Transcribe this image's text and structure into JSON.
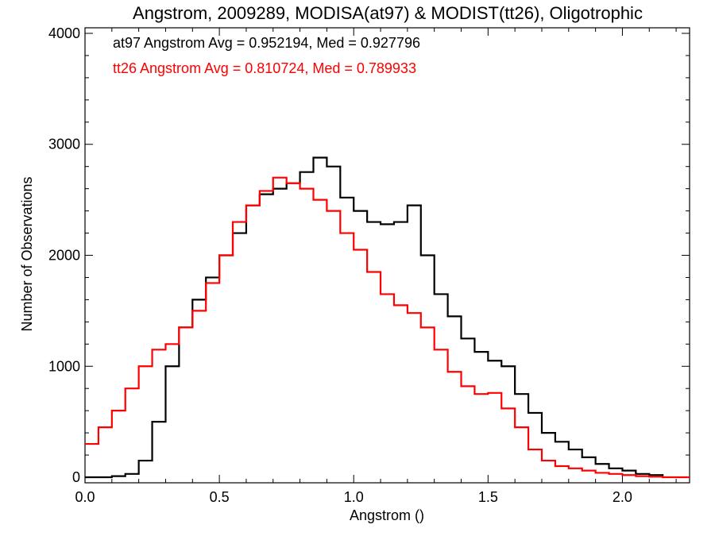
{
  "chart_data": {
    "type": "line",
    "title": "Angstrom, 2009289, MODISA(at97) & MODIST(tt26), Oligotrophic",
    "xlabel": "Angstrom ()",
    "ylabel": "Number of Observations",
    "xlim": [
      0.0,
      2.25
    ],
    "ylim": [
      -50,
      4050
    ],
    "xticks": [
      0.0,
      0.5,
      1.0,
      1.5,
      2.0
    ],
    "xtick_labels": [
      "0.0",
      "0.5",
      "1.0",
      "1.5",
      "2.0"
    ],
    "yticks": [
      0,
      1000,
      2000,
      3000,
      4000
    ],
    "ytick_labels": [
      "0",
      "1000",
      "2000",
      "3000",
      "4000"
    ],
    "grid": false,
    "step": true,
    "annotations": [
      {
        "text": "at97 Angstrom Avg = 0.952194, Med = 0.927796",
        "color": "#000000"
      },
      {
        "text": "tt26 Angstrom Avg = 0.810724, Med = 0.789933",
        "color": "#ff0000"
      }
    ],
    "series": [
      {
        "color": "#000000",
        "x": [
          0.0,
          0.1,
          0.15,
          0.2,
          0.25,
          0.3,
          0.35,
          0.4,
          0.45,
          0.5,
          0.55,
          0.6,
          0.65,
          0.7,
          0.75,
          0.8,
          0.85,
          0.9,
          0.95,
          1.0,
          1.05,
          1.1,
          1.15,
          1.2,
          1.25,
          1.3,
          1.35,
          1.4,
          1.45,
          1.5,
          1.55,
          1.6,
          1.65,
          1.7,
          1.75,
          1.8,
          1.85,
          1.9,
          1.95,
          2.0,
          2.05,
          2.1,
          2.15
        ],
        "y": [
          0,
          10,
          30,
          150,
          500,
          1000,
          1350,
          1600,
          1800,
          2000,
          2200,
          2450,
          2550,
          2600,
          2650,
          2750,
          2880,
          2800,
          2520,
          2400,
          2300,
          2280,
          2300,
          2450,
          2000,
          1650,
          1450,
          1250,
          1130,
          1050,
          1000,
          750,
          580,
          400,
          320,
          250,
          180,
          120,
          80,
          60,
          30,
          20,
          0
        ]
      },
      {
        "color": "#ff0000",
        "x": [
          0.0,
          0.05,
          0.1,
          0.15,
          0.2,
          0.25,
          0.3,
          0.35,
          0.4,
          0.45,
          0.5,
          0.55,
          0.6,
          0.65,
          0.7,
          0.75,
          0.8,
          0.85,
          0.9,
          0.95,
          1.0,
          1.05,
          1.1,
          1.15,
          1.2,
          1.25,
          1.3,
          1.35,
          1.4,
          1.45,
          1.5,
          1.55,
          1.6,
          1.65,
          1.7,
          1.75,
          1.8,
          1.85,
          1.9,
          1.95,
          2.0,
          2.05,
          2.1,
          2.15,
          2.25
        ],
        "y": [
          300,
          450,
          600,
          800,
          1000,
          1150,
          1200,
          1350,
          1500,
          1750,
          2000,
          2300,
          2450,
          2580,
          2700,
          2650,
          2600,
          2500,
          2400,
          2200,
          2050,
          1850,
          1650,
          1550,
          1480,
          1350,
          1150,
          950,
          820,
          750,
          760,
          620,
          450,
          250,
          150,
          100,
          80,
          60,
          40,
          30,
          20,
          10,
          5,
          0,
          0
        ]
      }
    ]
  }
}
